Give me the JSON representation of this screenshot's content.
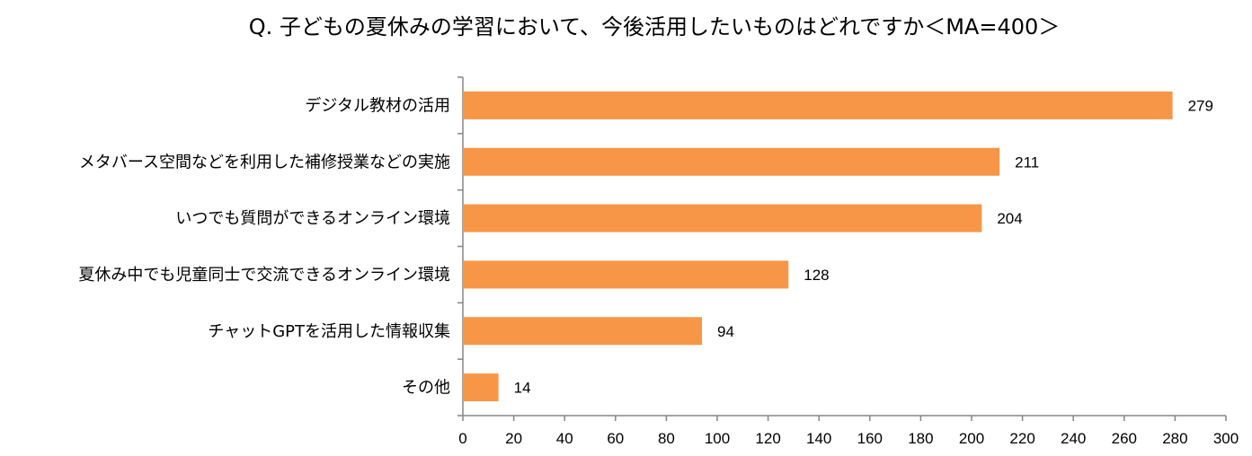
{
  "chart_data": {
    "type": "bar",
    "orientation": "horizontal",
    "title": "Q. 子どもの夏休みの学習において、今後活用したいものはどれですか＜MA=400＞",
    "categories": [
      "デジタル教材の活用",
      "メタバース空間などを利用した補修授業などの実施",
      "いつでも質問ができるオンライン環境",
      "夏休み中でも児童同士で交流できるオンライン環境",
      "チャットGPTを活用した情報収集",
      "その他"
    ],
    "values": [
      279,
      211,
      204,
      128,
      94,
      14
    ],
    "xlim": [
      0,
      300
    ],
    "ticks": [
      0,
      20,
      40,
      60,
      80,
      100,
      120,
      140,
      160,
      180,
      200,
      220,
      240,
      260,
      280,
      300
    ],
    "xlabel": "",
    "ylabel": "",
    "grid": false,
    "legend": "none",
    "colors": {
      "bar": "#F79646",
      "axis": "#868686",
      "text": "#000000"
    }
  }
}
